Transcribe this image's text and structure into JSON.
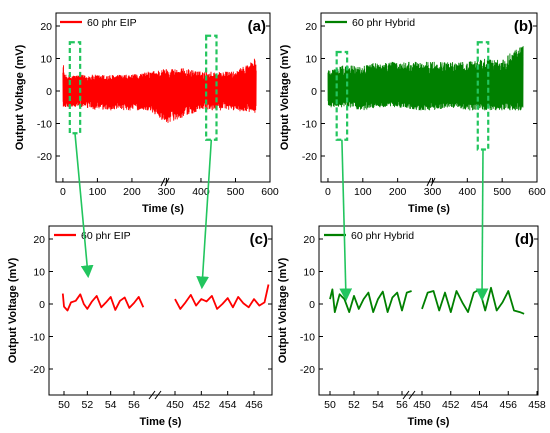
{
  "chart_data": [
    {
      "panel": "a",
      "type": "line",
      "panel_label": "(a)",
      "xlabel": "Time (s)",
      "ylabel": "Output Voltage (mV)",
      "xlim": [
        -20,
        600
      ],
      "ylim": [
        -28,
        24
      ],
      "xticks": [
        0,
        100,
        200,
        300,
        400,
        500,
        600
      ],
      "yticks": [
        -20,
        -10,
        0,
        10,
        20
      ],
      "color": "#ff0000",
      "series": [
        {
          "name": "60 phr  EIP",
          "x_range": [
            0,
            560
          ],
          "envelope": [
            {
              "x": 0,
              "min": -6,
              "max": 10
            },
            {
              "x": 5,
              "min": -5,
              "max": 5
            },
            {
              "x": 50,
              "min": -5,
              "max": 5
            },
            {
              "x": 100,
              "min": -6,
              "max": 5
            },
            {
              "x": 150,
              "min": -6,
              "max": 5
            },
            {
              "x": 200,
              "min": -6,
              "max": 5
            },
            {
              "x": 250,
              "min": -6,
              "max": 6
            },
            {
              "x": 300,
              "min": -10,
              "max": 7
            },
            {
              "x": 350,
              "min": -8,
              "max": 7
            },
            {
              "x": 400,
              "min": -6,
              "max": 6
            },
            {
              "x": 450,
              "min": -6,
              "max": 6
            },
            {
              "x": 500,
              "min": -6,
              "max": 6
            },
            {
              "x": 555,
              "min": -7,
              "max": 10
            }
          ]
        }
      ],
      "highlight_boxes_x": [
        [
          20,
          50
        ],
        [
          415,
          445
        ]
      ],
      "highlight_boxes_y": [
        [
          -13,
          15
        ],
        [
          -15,
          17
        ]
      ]
    },
    {
      "panel": "b",
      "type": "line",
      "panel_label": "(b)",
      "xlabel": "Time (s)",
      "ylabel": "Output Voltage (mV)",
      "xlim": [
        -20,
        600
      ],
      "ylim": [
        -28,
        24
      ],
      "xticks": [
        0,
        100,
        200,
        300,
        400,
        500,
        600
      ],
      "yticks": [
        -20,
        -10,
        0,
        10,
        20
      ],
      "color": "#008000",
      "series": [
        {
          "name": "60 phr Hybrid",
          "x_range": [
            0,
            560
          ],
          "envelope": [
            {
              "x": 0,
              "min": -5,
              "max": 7
            },
            {
              "x": 50,
              "min": -5,
              "max": 8
            },
            {
              "x": 100,
              "min": -6,
              "max": 8
            },
            {
              "x": 150,
              "min": -5,
              "max": 9
            },
            {
              "x": 200,
              "min": -5,
              "max": 9
            },
            {
              "x": 250,
              "min": -6,
              "max": 9
            },
            {
              "x": 300,
              "min": -6,
              "max": 9
            },
            {
              "x": 350,
              "min": -5,
              "max": 9
            },
            {
              "x": 400,
              "min": -6,
              "max": 9
            },
            {
              "x": 450,
              "min": -6,
              "max": 10
            },
            {
              "x": 500,
              "min": -6,
              "max": 10
            },
            {
              "x": 555,
              "min": -6,
              "max": 14
            }
          ]
        }
      ],
      "highlight_boxes_x": [
        [
          25,
          55
        ],
        [
          430,
          460
        ]
      ],
      "highlight_boxes_y": [
        [
          -15,
          12
        ],
        [
          -18,
          15
        ]
      ]
    },
    {
      "panel": "c",
      "type": "line",
      "panel_label": "(c)",
      "xlabel": "Time (s)",
      "ylabel": "Output Voltage (mV)",
      "x_tick_labels": [
        "50",
        "52",
        "54",
        "56",
        "450",
        "452",
        "454",
        "456"
      ],
      "axis_break": [
        57,
        450
      ],
      "ylim": [
        -28,
        24
      ],
      "yticks": [
        -20,
        -10,
        0,
        10,
        20
      ],
      "color": "#ff0000",
      "series": [
        {
          "name": "60 phr EIP",
          "segments": [
            {
              "x": [
                49.9,
                50.0,
                50.3,
                50.6,
                51.0,
                51.4,
                51.7,
                52.0,
                52.4,
                52.8,
                53.2,
                53.6,
                54.0,
                54.4,
                54.8,
                55.2,
                55.6,
                56.0,
                56.4,
                56.8
              ],
              "y": [
                3.2,
                -0.8,
                -2.0,
                0.5,
                1.0,
                3.0,
                0.0,
                -1.5,
                0.8,
                2.5,
                -1.0,
                0.5,
                2.2,
                -1.8,
                1.0,
                2.0,
                -1.2,
                0.3,
                2.2,
                -1.0
              ]
            },
            {
              "x": [
                450.0,
                450.4,
                450.8,
                451.2,
                451.6,
                452.0,
                452.4,
                452.8,
                453.2,
                453.6,
                454.0,
                454.4,
                454.8,
                455.2,
                455.6,
                456.0,
                456.4,
                456.8,
                457.1
              ],
              "y": [
                1.5,
                -1.5,
                0.5,
                2.8,
                -0.5,
                1.5,
                0.8,
                2.5,
                -1.5,
                0.0,
                1.8,
                -1.0,
                2.2,
                0.2,
                -1.0,
                1.5,
                -0.5,
                0.5,
                6.0
              ]
            }
          ]
        }
      ]
    },
    {
      "panel": "d",
      "type": "line",
      "panel_label": "(d)",
      "xlabel": "Time (s)",
      "ylabel": "Output Voltage (mV)",
      "x_tick_labels": [
        "50",
        "52",
        "54",
        "56",
        "450",
        "452",
        "454",
        "456",
        "458"
      ],
      "axis_break": [
        57,
        450
      ],
      "ylim": [
        -28,
        24
      ],
      "yticks": [
        -20,
        -10,
        0,
        10,
        20
      ],
      "color": "#008000",
      "series": [
        {
          "name": "60 phr Hybrid",
          "segments": [
            {
              "x": [
                50.0,
                50.2,
                50.4,
                50.8,
                51.2,
                51.6,
                52.0,
                52.4,
                52.8,
                53.2,
                53.6,
                54.0,
                54.4,
                54.8,
                55.2,
                55.6,
                56.0,
                56.4,
                56.8
              ],
              "y": [
                1.5,
                4.5,
                -2.5,
                3.0,
                1.5,
                -2.5,
                2.5,
                -1.5,
                1.5,
                3.5,
                -2.5,
                1.5,
                3.8,
                -2.5,
                2.0,
                3.5,
                -2.0,
                3.5,
                4.0
              ]
            },
            {
              "x": [
                450.0,
                450.4,
                450.8,
                451.2,
                451.6,
                452.0,
                452.4,
                452.8,
                453.2,
                453.6,
                454.0,
                454.4,
                454.8,
                455.2,
                455.6,
                456.0,
                456.4,
                456.8,
                457.1
              ],
              "y": [
                -1.5,
                3.5,
                4.0,
                -2.0,
                3.5,
                -2.5,
                4.0,
                0.5,
                -2.5,
                3.5,
                4.5,
                -2.0,
                5.0,
                -2.0,
                0.5,
                4.0,
                -2.0,
                -2.5,
                -3.0
              ]
            }
          ]
        }
      ]
    }
  ]
}
